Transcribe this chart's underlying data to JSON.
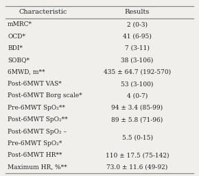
{
  "title_col1": "Characteristic",
  "title_col2": "Results",
  "rows": [
    [
      "mMRC*",
      "2 (0-3)"
    ],
    [
      "OCD*",
      "41 (6-95)"
    ],
    [
      "BDI*",
      "7 (3-11)"
    ],
    [
      "SOBQ*",
      "38 (3-106)"
    ],
    [
      "6MWD, m**",
      "435 ± 64.7 (192-570)"
    ],
    [
      "Post-6MWT VAS*",
      "53 (3-100)"
    ],
    [
      "Post-6MWT Borg scale*",
      "4 (0-7)"
    ],
    [
      "Pre-6MWT SpO₂**",
      "94 ± 3.4 (85-99)"
    ],
    [
      "Post-6MWT SpO₂**",
      "89 ± 5.8 (71-96)"
    ],
    [
      "Post-6MWT SpO₂ –\nPre-6MWT SpO₂*",
      "5.5 (0-15)"
    ],
    [
      "Post-6MWT HR**",
      "110 ± 17.5 (75-142)"
    ],
    [
      "Maximum HR, %**",
      "73.0 ± 11.6 (49-92)"
    ]
  ],
  "bg_color": "#f0efeb",
  "font_size": 6.5,
  "header_font_size": 7.0,
  "line_color": "#888888",
  "text_color": "#222222"
}
